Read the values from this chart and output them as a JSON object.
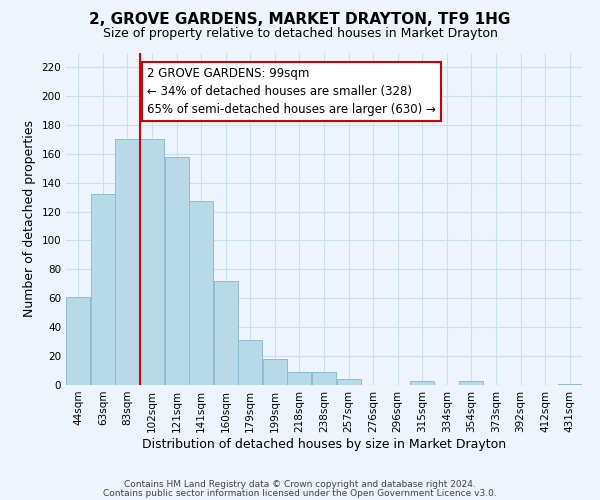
{
  "title": "2, GROVE GARDENS, MARKET DRAYTON, TF9 1HG",
  "subtitle": "Size of property relative to detached houses in Market Drayton",
  "xlabel": "Distribution of detached houses by size in Market Drayton",
  "ylabel": "Number of detached properties",
  "bar_color": "#b8d9e8",
  "bar_edge_color": "#8bbdd4",
  "grid_color": "#c8dff0",
  "vline_x": 3,
  "vline_color": "#dd0000",
  "annotation_text": "2 GROVE GARDENS: 99sqm\n← 34% of detached houses are smaller (328)\n65% of semi-detached houses are larger (630) →",
  "annotation_box_color": "#ffffff",
  "annotation_box_edge": "#cc0000",
  "categories": [
    "44sqm",
    "63sqm",
    "83sqm",
    "102sqm",
    "121sqm",
    "141sqm",
    "160sqm",
    "179sqm",
    "199sqm",
    "218sqm",
    "238sqm",
    "257sqm",
    "276sqm",
    "296sqm",
    "315sqm",
    "334sqm",
    "354sqm",
    "373sqm",
    "392sqm",
    "412sqm",
    "431sqm"
  ],
  "values": [
    61,
    132,
    170,
    170,
    158,
    127,
    72,
    31,
    18,
    9,
    9,
    4,
    0,
    0,
    3,
    0,
    3,
    0,
    0,
    0,
    1
  ],
  "ylim": [
    0,
    230
  ],
  "yticks": [
    0,
    20,
    40,
    60,
    80,
    100,
    120,
    140,
    160,
    180,
    200,
    220
  ],
  "footer1": "Contains HM Land Registry data © Crown copyright and database right 2024.",
  "footer2": "Contains public sector information licensed under the Open Government Licence v3.0.",
  "bg_color": "#eef4fb",
  "title_fontsize": 11,
  "subtitle_fontsize": 9,
  "xlabel_fontsize": 9,
  "ylabel_fontsize": 9,
  "tick_fontsize": 7.5,
  "footer_fontsize": 6.5,
  "annot_fontsize": 8.5
}
